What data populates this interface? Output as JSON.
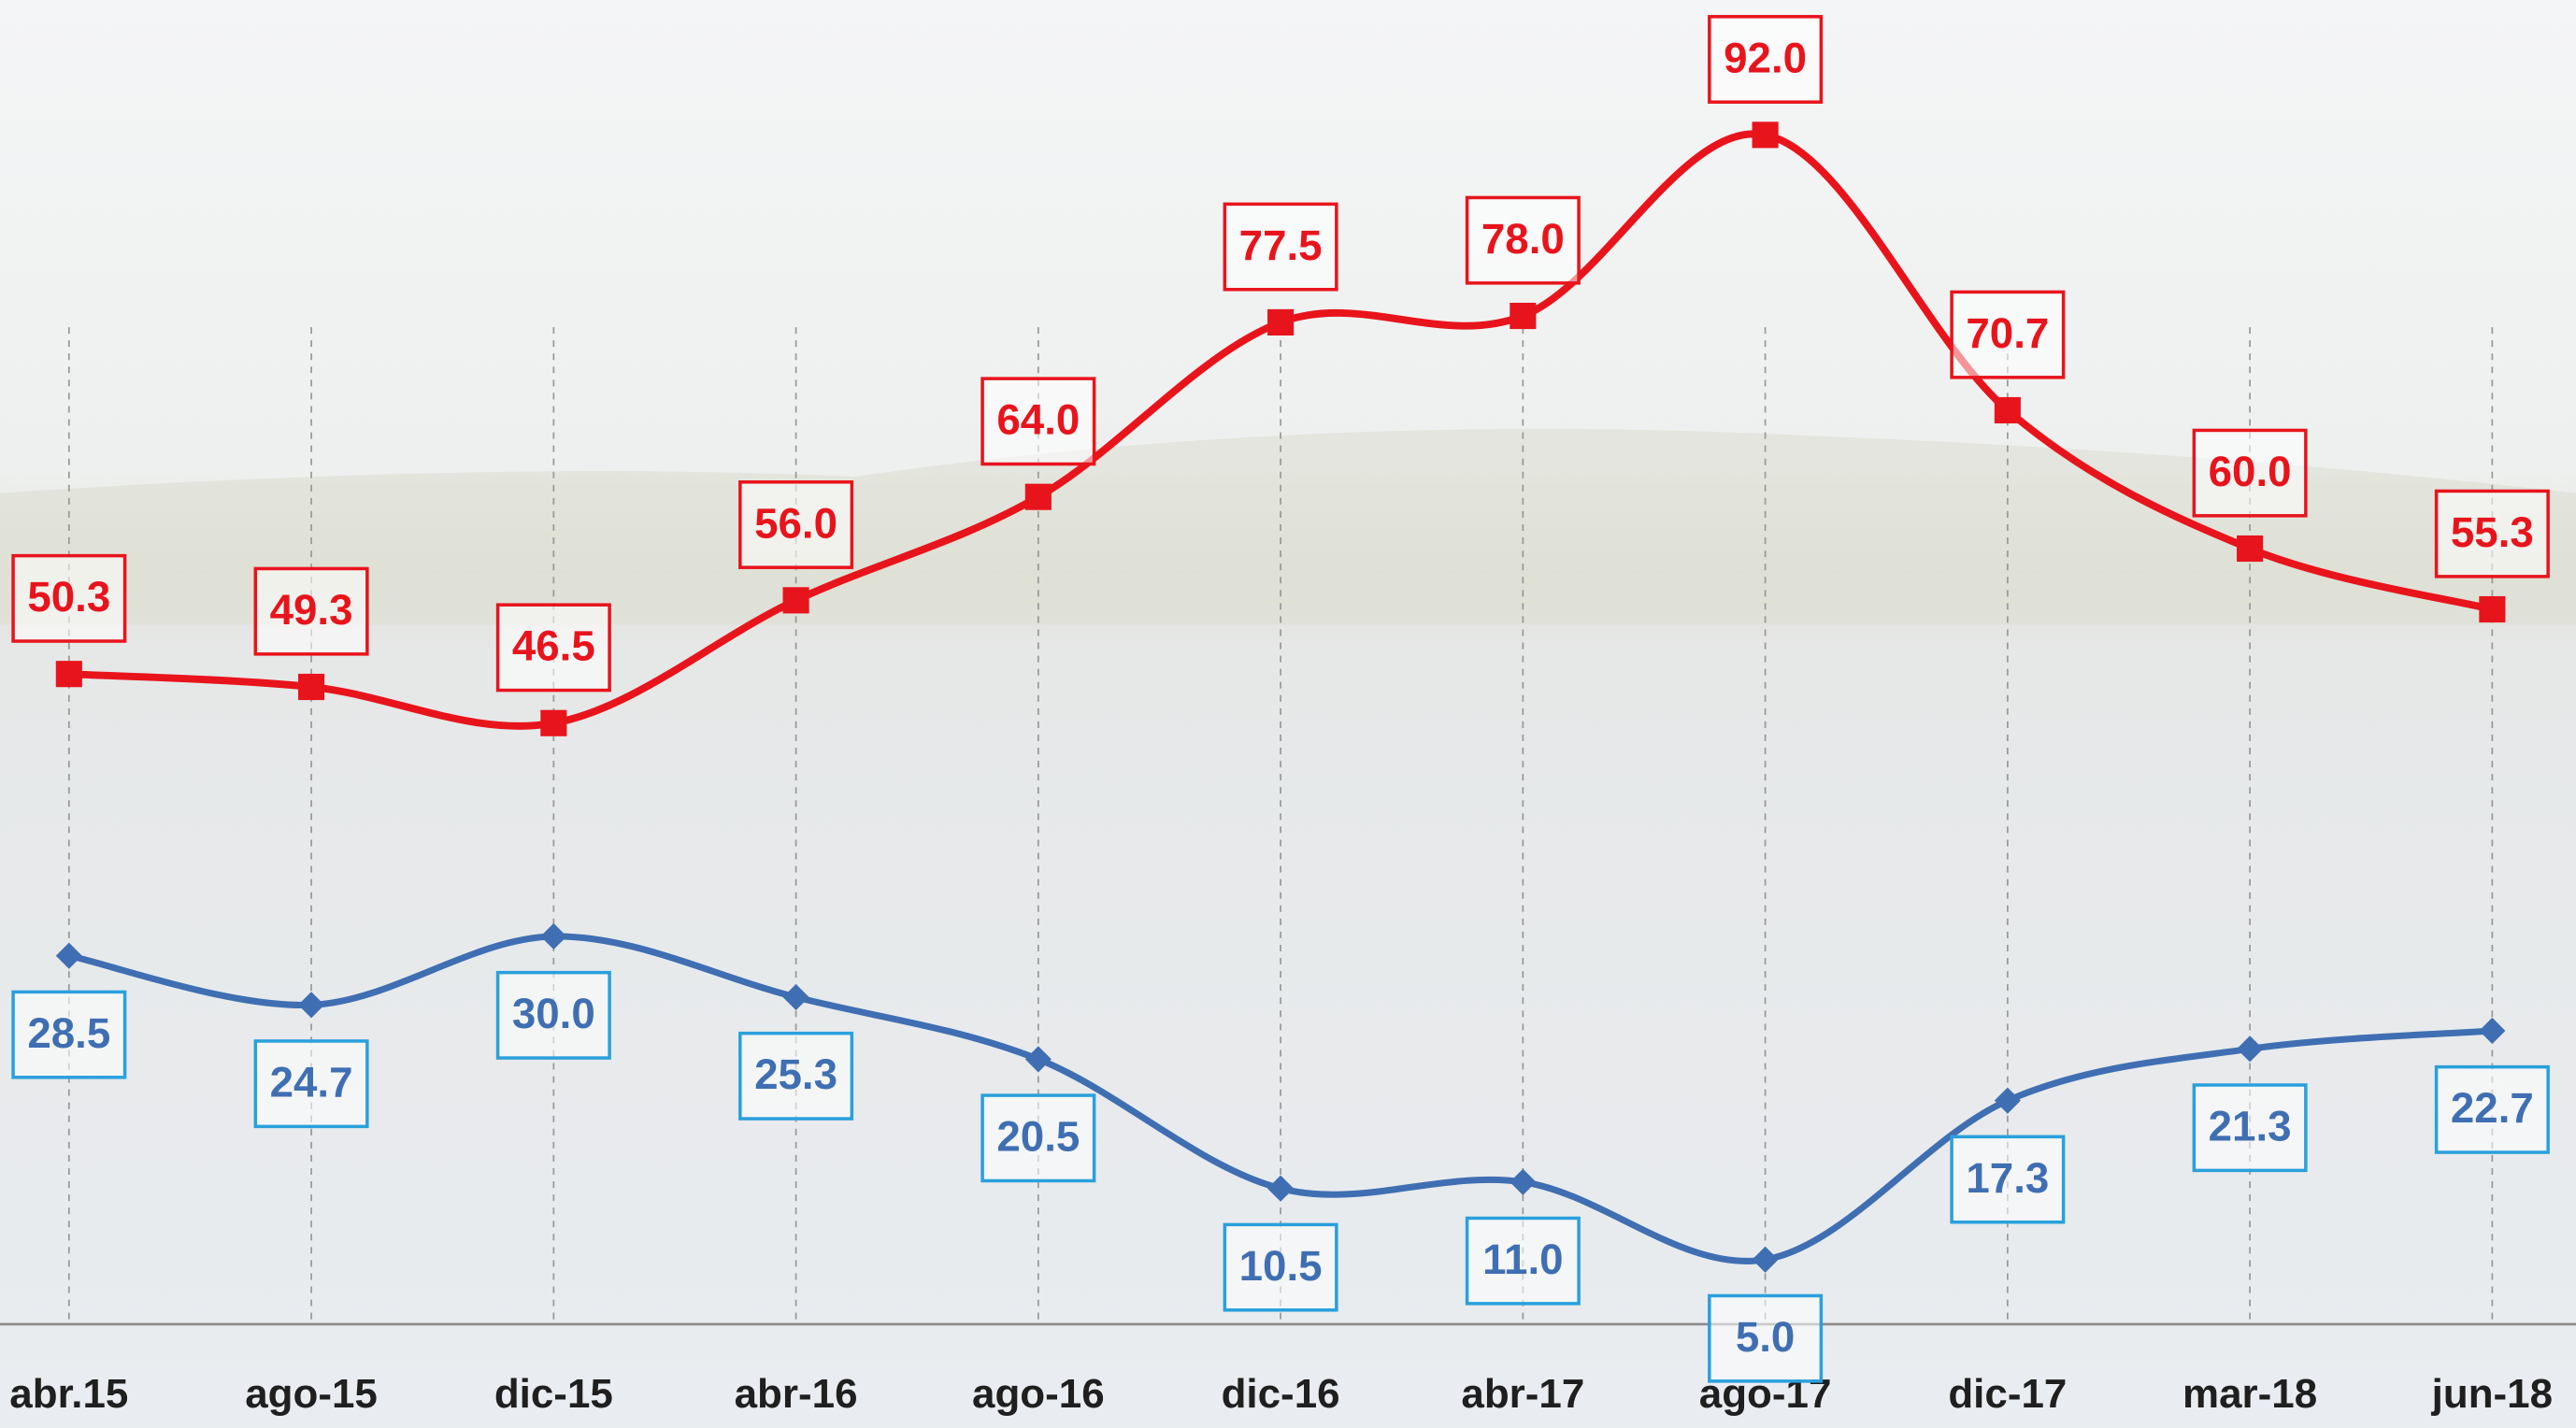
{
  "chart_data": {
    "type": "line",
    "categories": [
      "abr.15",
      "ago-15",
      "dic-15",
      "abr-16",
      "ago-16",
      "dic-16",
      "abr-17",
      "ago-17",
      "dic-17",
      "mar-18",
      "jun-18"
    ],
    "series": [
      {
        "color": "#e8141c",
        "label_border": "#e8141c",
        "marker": "square",
        "values": [
          50.3,
          49.3,
          46.5,
          56.0,
          64.0,
          77.5,
          78.0,
          92.0,
          70.7,
          60.0,
          55.3
        ],
        "value_labels": [
          "50.3",
          "49.3",
          "46.5",
          "56.0",
          "64.0",
          "77.5",
          "78.0",
          "92.0",
          "70.7",
          "60.0",
          "55.3"
        ]
      },
      {
        "color": "#3f6fb2",
        "label_border": "#2aa0dc",
        "marker": "diamond",
        "values": [
          28.5,
          24.7,
          30.0,
          25.3,
          20.5,
          10.5,
          11.0,
          5.0,
          17.3,
          21.3,
          22.7
        ],
        "value_labels": [
          "28.5",
          "24.7",
          "30.0",
          "25.3",
          "20.5",
          "10.5",
          "11.0",
          "5.0",
          "17.3",
          "21.3",
          "22.7"
        ]
      }
    ],
    "ylim": [
      0,
      100
    ],
    "grid": true
  }
}
